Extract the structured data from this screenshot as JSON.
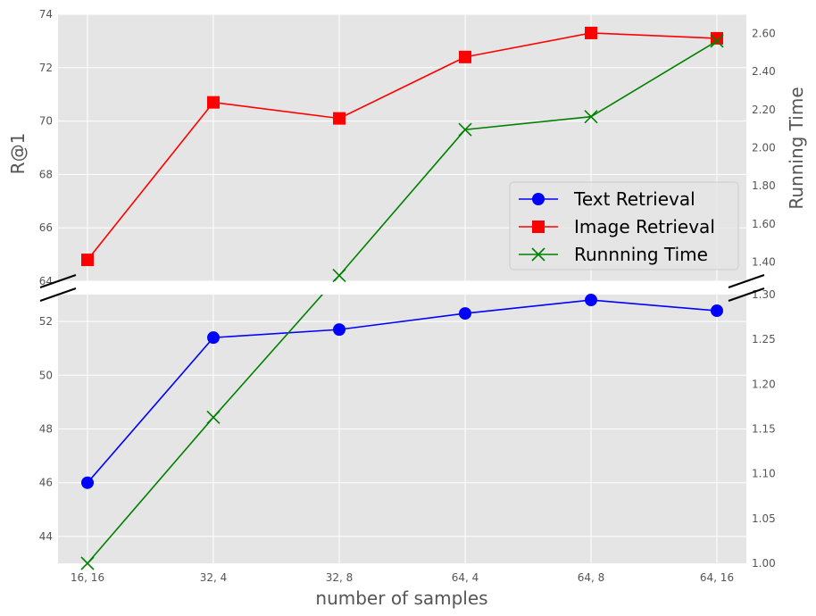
{
  "chart_data": {
    "type": "line",
    "x_axis": {
      "label": "number of samples",
      "categories": [
        "16, 16",
        "32, 4",
        "32, 8",
        "64, 4",
        "64, 8",
        "64, 16"
      ]
    },
    "left_axis": {
      "label": "R@1",
      "broken": true,
      "upper": {
        "range": [
          64,
          74
        ],
        "ticks": [
          "64",
          "66",
          "68",
          "70",
          "72",
          "74"
        ]
      },
      "lower": {
        "range": [
          43,
          53
        ],
        "ticks": [
          "44",
          "46",
          "48",
          "50",
          "52"
        ]
      }
    },
    "right_axis": {
      "label": "Running Time",
      "upper": {
        "range": [
          1.3,
          2.7
        ],
        "ticks": [
          "1.40",
          "1.60",
          "1.80",
          "2.00",
          "2.20",
          "2.40",
          "2.60"
        ]
      },
      "lower": {
        "range": [
          1.0,
          1.3
        ],
        "ticks": [
          "1.00",
          "1.05",
          "1.10",
          "1.15",
          "1.20",
          "1.25",
          "1.30"
        ]
      }
    },
    "series": [
      {
        "name": "Text Retrieval",
        "axis": "left",
        "marker": "circle",
        "color": "#0000ff",
        "values": [
          46.0,
          51.4,
          51.7,
          52.3,
          52.8,
          52.4
        ]
      },
      {
        "name": "Image Retrieval",
        "axis": "left",
        "marker": "square",
        "color": "#ff0000",
        "values": [
          64.8,
          70.7,
          70.1,
          72.4,
          73.3,
          73.1
        ]
      },
      {
        "name": "Runnning Time",
        "axis": "right",
        "marker": "x",
        "color": "#008000",
        "values": [
          1.0,
          1.163,
          1.33,
          2.095,
          2.163,
          2.56
        ]
      }
    ],
    "legend": {
      "placement": "center-right"
    },
    "grid": true
  }
}
